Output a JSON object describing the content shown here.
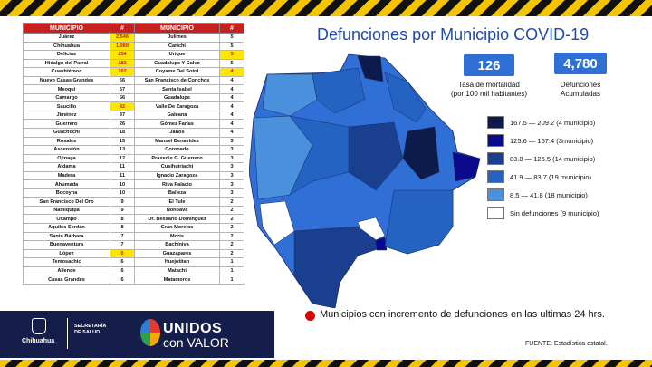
{
  "title": "Defunciones por Municipio COVID-19",
  "table": {
    "headers": [
      "MUNICIPIO",
      "#",
      "MUNICIPIO",
      "#"
    ],
    "rows": [
      {
        "m1": "Juárez",
        "n1": "2,546",
        "h1": true,
        "m2": "Julimes",
        "n2": "5",
        "h2": false
      },
      {
        "m1": "Chihuahua",
        "n1": "1,089",
        "h1": true,
        "m2": "Carichi",
        "n2": "5",
        "h2": false
      },
      {
        "m1": "Delicias",
        "n1": "254",
        "h1": true,
        "m2": "Urique",
        "n2": "5",
        "h2": true
      },
      {
        "m1": "Hidalgo del Parral",
        "n1": "183",
        "h1": true,
        "m2": "Guadalupe Y Calvo",
        "n2": "5",
        "h2": false
      },
      {
        "m1": "Cuauhtémoc",
        "n1": "162",
        "h1": true,
        "m2": "Coyame Del Sotol",
        "n2": "4",
        "h2": true
      },
      {
        "m1": "Nuevo Casas Grandes",
        "n1": "66",
        "h1": false,
        "m2": "San Francisco de Conchos",
        "n2": "4",
        "h2": false
      },
      {
        "m1": "Meoqui",
        "n1": "57",
        "h1": false,
        "m2": "Santa Isabel",
        "n2": "4",
        "h2": false
      },
      {
        "m1": "Camargo",
        "n1": "56",
        "h1": false,
        "m2": "Guadalupe",
        "n2": "4",
        "h2": false
      },
      {
        "m1": "Saucillo",
        "n1": "42",
        "h1": true,
        "m2": "Valle De Zaragoza",
        "n2": "4",
        "h2": false
      },
      {
        "m1": "Jiménez",
        "n1": "37",
        "h1": false,
        "m2": "Galeana",
        "n2": "4",
        "h2": false
      },
      {
        "m1": "Guerrero",
        "n1": "26",
        "h1": false,
        "m2": "Gómez Farías",
        "n2": "4",
        "h2": false
      },
      {
        "m1": "Guachochi",
        "n1": "18",
        "h1": false,
        "m2": "Janos",
        "n2": "4",
        "h2": false
      },
      {
        "m1": "Rosales",
        "n1": "15",
        "h1": false,
        "m2": "Manuel Benavides",
        "n2": "3",
        "h2": false
      },
      {
        "m1": "Ascensión",
        "n1": "13",
        "h1": false,
        "m2": "Coronado",
        "n2": "3",
        "h2": false
      },
      {
        "m1": "Ojinaga",
        "n1": "12",
        "h1": false,
        "m2": "Praxedis G. Guerrero",
        "n2": "3",
        "h2": false
      },
      {
        "m1": "Aldama",
        "n1": "11",
        "h1": false,
        "m2": "Cusihuiriachi",
        "n2": "3",
        "h2": false
      },
      {
        "m1": "Madera",
        "n1": "11",
        "h1": false,
        "m2": "Ignacio Zaragoza",
        "n2": "3",
        "h2": false
      },
      {
        "m1": "Ahumada",
        "n1": "10",
        "h1": false,
        "m2": "Riva Palacio",
        "n2": "3",
        "h2": false
      },
      {
        "m1": "Bocoyna",
        "n1": "10",
        "h1": false,
        "m2": "Balleza",
        "n2": "3",
        "h2": false
      },
      {
        "m1": "San Francisco Del Oro",
        "n1": "9",
        "h1": false,
        "m2": "El Tule",
        "n2": "2",
        "h2": false
      },
      {
        "m1": "Namiquipa",
        "n1": "9",
        "h1": false,
        "m2": "Nonoava",
        "n2": "2",
        "h2": false
      },
      {
        "m1": "Ocampo",
        "n1": "8",
        "h1": false,
        "m2": "Dr. Belisario Domínguez",
        "n2": "2",
        "h2": false
      },
      {
        "m1": "Aquiles Serdán",
        "n1": "8",
        "h1": false,
        "m2": "Gran Morelos",
        "n2": "2",
        "h2": false
      },
      {
        "m1": "Santa Bárbara",
        "n1": "7",
        "h1": false,
        "m2": "Moris",
        "n2": "2",
        "h2": false
      },
      {
        "m1": "Buenaventura",
        "n1": "7",
        "h1": false,
        "m2": "Bachíniva",
        "n2": "2",
        "h2": false
      },
      {
        "m1": "López",
        "n1": "6",
        "h1": true,
        "m2": "Guazapares",
        "n2": "2",
        "h2": false
      },
      {
        "m1": "Temosachic",
        "n1": "6",
        "h1": false,
        "m2": "Huejotitan",
        "n2": "1",
        "h2": false
      },
      {
        "m1": "Allende",
        "n1": "6",
        "h1": false,
        "m2": "Matachi",
        "n2": "1",
        "h2": false
      },
      {
        "m1": "Casas Grandes",
        "n1": "6",
        "h1": false,
        "m2": "Matamoros",
        "n2": "1",
        "h2": false
      }
    ]
  },
  "stats": {
    "rate_value": "126",
    "rate_label_1": "Tasa de mortalidad",
    "rate_label_2": "(por 100 mil habitantes)",
    "deaths_value": "4,780",
    "deaths_label_1": "Defunciones",
    "deaths_label_2": "Acumuladas"
  },
  "legend": [
    {
      "label": "167.5 — 209.2 (4 municipio)",
      "color": "#0d1b4c"
    },
    {
      "label": "125.6 — 167.4 (3municipio)",
      "color": "#0a0a8a"
    },
    {
      "label": "83.8 — 125.5 (14 municipio)",
      "color": "#1a3f8f"
    },
    {
      "label": "41.9 — 83.7 (19 municipio)",
      "color": "#2563c2"
    },
    {
      "label": "8.5 — 41.8 (18 municipio)",
      "color": "#4a90dd"
    },
    {
      "label": "Sin defunciones (9 municipio)",
      "color": "#ffffff"
    }
  ],
  "note": "Municipios con incremento de defunciones en las ultimas 24 hrs.",
  "source": "FUENTE: Estadística estatal.",
  "banner": {
    "state": "Chihuahua",
    "dept": "SECRETARÍA DE SALUD",
    "slogan_1": "UNIDOS",
    "slogan_2": "con VALOR"
  }
}
